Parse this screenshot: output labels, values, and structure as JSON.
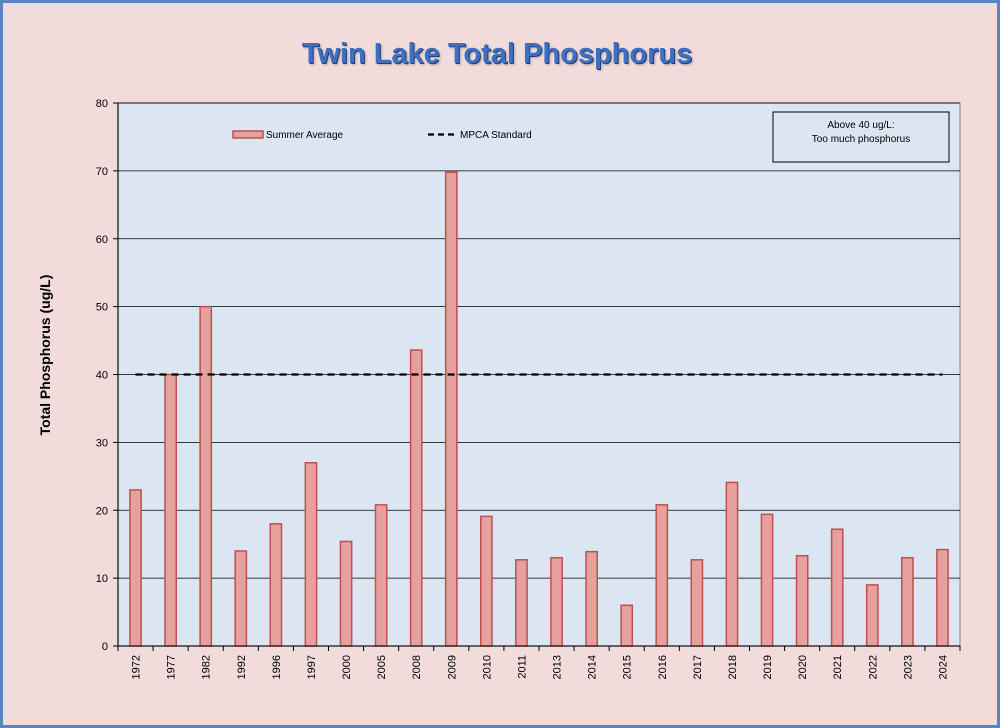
{
  "chart_data": {
    "type": "bar",
    "title": "Twin Lake Total Phosphorus",
    "ylabel": "Total Phosphorus (ug/L)",
    "xlabel": "",
    "ylim": [
      0,
      80
    ],
    "yticks": [
      0,
      10,
      20,
      30,
      40,
      50,
      60,
      70,
      80
    ],
    "grid": true,
    "categories": [
      "1972",
      "1977",
      "1982",
      "1992",
      "1996",
      "1997",
      "2000",
      "2005",
      "2008",
      "2009",
      "2010",
      "2011",
      "2013",
      "2014",
      "2015",
      "2016",
      "2017",
      "2018",
      "2019",
      "2020",
      "2021",
      "2022",
      "2023",
      "2024"
    ],
    "series": [
      {
        "name": "Summer Average",
        "values": [
          23,
          40,
          50,
          14,
          18,
          27,
          15.4,
          20.8,
          43.6,
          69.8,
          19.1,
          12.7,
          13,
          13.9,
          6,
          20.8,
          12.7,
          24.1,
          19.4,
          13.3,
          17.2,
          9,
          13,
          14.2
        ]
      }
    ],
    "reference_line": {
      "name": "MPCA Standard",
      "value": 40
    },
    "annotation": {
      "line1": "Above 40 ug/L:",
      "line2": "Too much phosphorus"
    },
    "legend_placement": "top",
    "colors": {
      "bar_fill": "#e6a19f",
      "bar_stroke": "#c0504d",
      "plot_bg": "#dce6f2",
      "chart_bg": "#f2dcdb",
      "title": "#3f6fc0",
      "frame": "#5b86c4"
    }
  }
}
